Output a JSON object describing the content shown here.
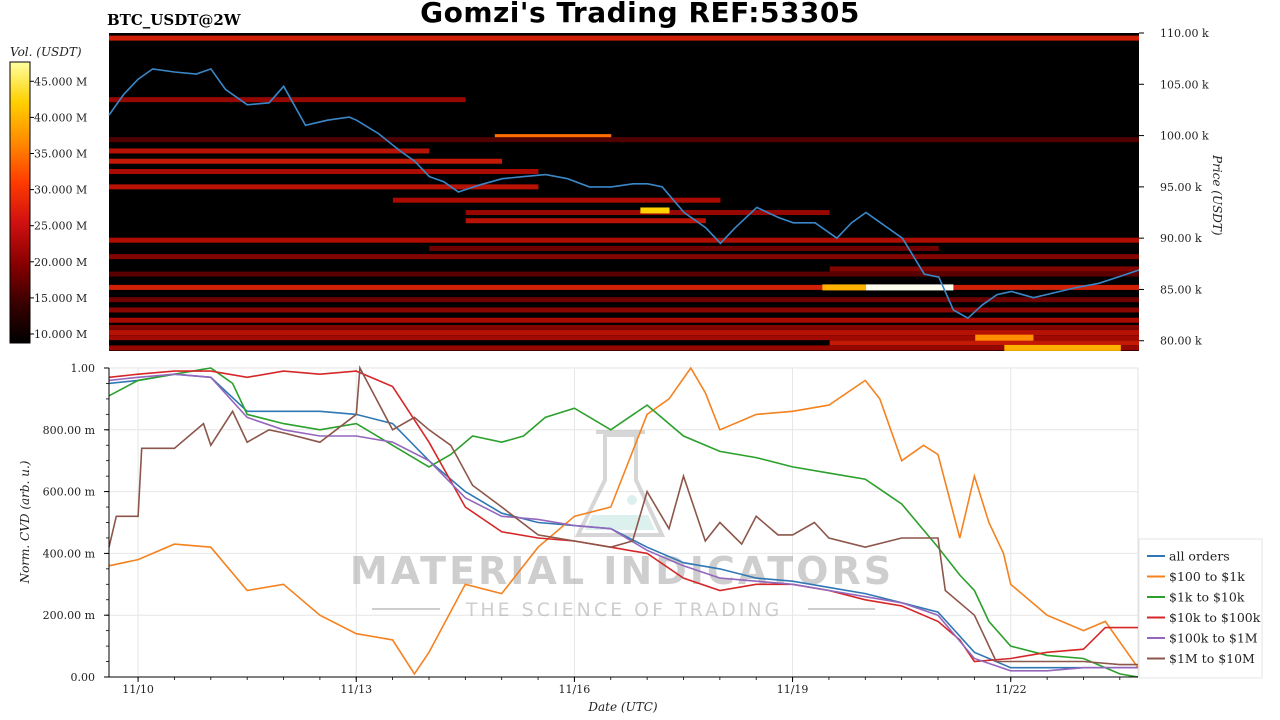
{
  "header": {
    "title": "Gomzi's Trading REF:53305",
    "symbol": "BTC_USDT@2W"
  },
  "watermark": {
    "brand": "MATERIAL INDICATORS",
    "tagline": "THE SCIENCE OF TRADING"
  },
  "colorbar": {
    "label": "Vol. (USDT)",
    "ticks": [
      "10.000 M",
      "15.000 M",
      "20.000 M",
      "25.000 M",
      "30.000 M",
      "35.000 M",
      "40.000 M",
      "45.000 M"
    ],
    "colors": [
      "#000000",
      "#3a0000",
      "#8a0000",
      "#d01010",
      "#ff3b00",
      "#ff8a00",
      "#ffd000",
      "#ffffa0"
    ]
  },
  "chart_data": [
    {
      "type": "heatmap",
      "ylabel": "Price (USDT)",
      "ylim": [
        79000,
        110000
      ],
      "y_ticks": [
        "80.00 k",
        "85.00 k",
        "90.00 k",
        "95.00 k",
        "100.00 k",
        "105.00 k",
        "110.00 k"
      ],
      "y_tick_values": [
        80000,
        85000,
        90000,
        95000,
        100000,
        105000,
        110000
      ],
      "xlim": [
        9.6,
        23.75
      ],
      "price_line": {
        "color": "#3a87c8",
        "x": [
          9.6,
          9.8,
          10.0,
          10.2,
          10.5,
          10.8,
          11.0,
          11.2,
          11.5,
          11.8,
          12.0,
          12.3,
          12.6,
          12.9,
          13.0,
          13.3,
          13.6,
          13.8,
          14.0,
          14.2,
          14.4,
          14.7,
          15.0,
          15.3,
          15.6,
          15.9,
          16.2,
          16.5,
          16.8,
          17.0,
          17.2,
          17.5,
          17.8,
          18.0,
          18.2,
          18.5,
          18.8,
          19.0,
          19.3,
          19.6,
          19.8,
          20.0,
          20.2,
          20.5,
          20.8,
          21.0,
          21.2,
          21.4,
          21.6,
          21.8,
          22.0,
          22.3,
          22.6,
          22.9,
          23.2,
          23.5,
          23.75
        ],
        "y": [
          102000,
          104000,
          105500,
          106500,
          106200,
          106000,
          106500,
          104500,
          103000,
          103200,
          104800,
          101000,
          101500,
          101800,
          101500,
          100200,
          98500,
          97500,
          96000,
          95500,
          94500,
          95200,
          95800,
          96000,
          96200,
          95800,
          95000,
          95000,
          95300,
          95300,
          95000,
          92500,
          91000,
          89500,
          91000,
          93000,
          92000,
          91500,
          91500,
          90000,
          91500,
          92500,
          91500,
          90000,
          86500,
          86200,
          83000,
          82200,
          83500,
          84500,
          84800,
          84200,
          84700,
          85200,
          85600,
          86300,
          86900
        ]
      },
      "levels": [
        {
          "price": 109500,
          "x0": 9.6,
          "x1": 23.75,
          "intensity": 0.55
        },
        {
          "price": 103500,
          "x0": 9.6,
          "x1": 14.5,
          "intensity": 0.35
        },
        {
          "price": 99900,
          "x0": 14.9,
          "x1": 16.5,
          "intensity": 0.75
        },
        {
          "price": 99600,
          "x0": 9.6,
          "x1": 23.75,
          "intensity": 0.18
        },
        {
          "price": 98500,
          "x0": 9.6,
          "x1": 14.0,
          "intensity": 0.45
        },
        {
          "price": 97500,
          "x0": 9.6,
          "x1": 15.0,
          "intensity": 0.5
        },
        {
          "price": 96500,
          "x0": 9.6,
          "x1": 15.5,
          "intensity": 0.4
        },
        {
          "price": 95000,
          "x0": 9.6,
          "x1": 15.5,
          "intensity": 0.45
        },
        {
          "price": 93700,
          "x0": 13.5,
          "x1": 18.0,
          "intensity": 0.4
        },
        {
          "price": 92500,
          "x0": 14.5,
          "x1": 19.5,
          "intensity": 0.35
        },
        {
          "price": 91700,
          "x0": 14.5,
          "x1": 17.8,
          "intensity": 0.45
        },
        {
          "price": 89800,
          "x0": 9.6,
          "x1": 23.75,
          "intensity": 0.42
        },
        {
          "price": 89000,
          "x0": 14.0,
          "x1": 21.0,
          "intensity": 0.25
        },
        {
          "price": 88200,
          "x0": 9.6,
          "x1": 23.75,
          "intensity": 0.3
        },
        {
          "price": 87000,
          "x0": 19.5,
          "x1": 23.75,
          "intensity": 0.3
        },
        {
          "price": 86500,
          "x0": 9.6,
          "x1": 23.75,
          "intensity": 0.2
        },
        {
          "price": 85200,
          "x0": 9.6,
          "x1": 23.75,
          "intensity": 0.55
        },
        {
          "price": 84000,
          "x0": 9.6,
          "x1": 23.75,
          "intensity": 0.25
        },
        {
          "price": 83000,
          "x0": 9.6,
          "x1": 23.75,
          "intensity": 0.32
        },
        {
          "price": 82000,
          "x0": 9.6,
          "x1": 23.75,
          "intensity": 0.4
        },
        {
          "price": 81300,
          "x0": 9.6,
          "x1": 23.75,
          "intensity": 0.3
        },
        {
          "price": 80800,
          "x0": 9.6,
          "x1": 23.75,
          "intensity": 0.45
        },
        {
          "price": 80300,
          "x0": 9.6,
          "x1": 23.75,
          "intensity": 0.38
        },
        {
          "price": 79800,
          "x0": 19.5,
          "x1": 23.75,
          "intensity": 0.5
        },
        {
          "price": 79300,
          "x0": 9.6,
          "x1": 23.75,
          "intensity": 0.35
        }
      ],
      "hotspots": [
        {
          "price": 85200,
          "x0": 20.0,
          "x1": 21.2,
          "intensity": 1.0
        },
        {
          "price": 85200,
          "x0": 19.4,
          "x1": 20.0,
          "intensity": 0.85
        },
        {
          "price": 92700,
          "x0": 16.9,
          "x1": 17.3,
          "intensity": 0.9
        },
        {
          "price": 79300,
          "x0": 21.9,
          "x1": 23.5,
          "intensity": 0.85
        },
        {
          "price": 80300,
          "x0": 21.5,
          "x1": 22.3,
          "intensity": 0.8
        }
      ]
    },
    {
      "type": "line",
      "xlabel": "Date (UTC)",
      "ylabel": "Norm. CVD (arb. u.)",
      "ylim": [
        0,
        1
      ],
      "xlim": [
        9.6,
        23.75
      ],
      "x_ticks": [
        "11/10",
        "11/13",
        "11/16",
        "11/19",
        "11/22"
      ],
      "x_tick_values": [
        10,
        13,
        16,
        19,
        22
      ],
      "y_ticks": [
        "0.00",
        "200.00 m",
        "400.00 m",
        "600.00 m",
        "800.00 m",
        "1.00"
      ],
      "y_tick_values": [
        0,
        0.2,
        0.4,
        0.6,
        0.8,
        1.0
      ],
      "series": [
        {
          "name": "all orders",
          "color": "#2f78b4",
          "x": [
            9.6,
            10.0,
            10.5,
            11.0,
            11.5,
            12.0,
            12.5,
            13.0,
            13.5,
            14.0,
            14.5,
            15.0,
            15.5,
            16.0,
            16.5,
            17.0,
            17.5,
            18.0,
            18.5,
            19.0,
            19.5,
            20.0,
            20.5,
            21.0,
            21.5,
            22.0,
            22.5,
            23.0,
            23.75
          ],
          "y": [
            0.95,
            0.96,
            0.98,
            0.97,
            0.86,
            0.86,
            0.86,
            0.85,
            0.82,
            0.7,
            0.6,
            0.53,
            0.5,
            0.49,
            0.48,
            0.42,
            0.37,
            0.35,
            0.32,
            0.31,
            0.29,
            0.27,
            0.24,
            0.21,
            0.08,
            0.03,
            0.03,
            0.03,
            0.03
          ]
        },
        {
          "name": "$100 to $1k",
          "color": "#f5821f",
          "x": [
            9.6,
            10.0,
            10.5,
            11.0,
            11.5,
            12.0,
            12.5,
            13.0,
            13.5,
            13.8,
            14.0,
            14.5,
            15.0,
            15.5,
            16.0,
            16.5,
            17.0,
            17.3,
            17.6,
            17.8,
            18.0,
            18.5,
            19.0,
            19.5,
            20.0,
            20.2,
            20.5,
            20.8,
            21.0,
            21.3,
            21.5,
            21.7,
            21.9,
            22.0,
            22.5,
            23.0,
            23.3,
            23.75
          ],
          "y": [
            0.36,
            0.38,
            0.43,
            0.42,
            0.28,
            0.3,
            0.2,
            0.14,
            0.12,
            0.01,
            0.08,
            0.3,
            0.27,
            0.42,
            0.52,
            0.55,
            0.85,
            0.9,
            1.0,
            0.92,
            0.8,
            0.85,
            0.86,
            0.88,
            0.96,
            0.9,
            0.7,
            0.75,
            0.72,
            0.45,
            0.65,
            0.5,
            0.4,
            0.3,
            0.2,
            0.15,
            0.18,
            0.03
          ]
        },
        {
          "name": "$1k to $10k",
          "color": "#2ca02c",
          "x": [
            9.6,
            10.0,
            10.5,
            11.0,
            11.3,
            11.5,
            12.0,
            12.5,
            13.0,
            13.5,
            14.0,
            14.3,
            14.6,
            15.0,
            15.3,
            15.6,
            16.0,
            16.5,
            17.0,
            17.5,
            18.0,
            18.5,
            19.0,
            19.5,
            20.0,
            20.5,
            21.0,
            21.3,
            21.5,
            21.7,
            22.0,
            22.5,
            23.0,
            23.5,
            23.75
          ],
          "y": [
            0.91,
            0.96,
            0.98,
            1.0,
            0.95,
            0.85,
            0.82,
            0.8,
            0.82,
            0.75,
            0.68,
            0.72,
            0.78,
            0.76,
            0.78,
            0.84,
            0.87,
            0.8,
            0.88,
            0.78,
            0.73,
            0.71,
            0.68,
            0.66,
            0.64,
            0.56,
            0.42,
            0.33,
            0.28,
            0.18,
            0.1,
            0.07,
            0.06,
            0.01,
            0.0
          ]
        },
        {
          "name": "$10k to $100k",
          "color": "#d62728",
          "x": [
            9.6,
            10.0,
            10.5,
            11.0,
            11.5,
            12.0,
            12.5,
            13.0,
            13.5,
            14.0,
            14.5,
            15.0,
            15.5,
            16.0,
            16.5,
            17.0,
            17.5,
            18.0,
            18.5,
            19.0,
            19.5,
            20.0,
            20.5,
            21.0,
            21.3,
            21.5,
            22.0,
            22.5,
            23.0,
            23.3,
            23.75
          ],
          "y": [
            0.97,
            0.98,
            0.99,
            0.99,
            0.97,
            0.99,
            0.98,
            0.99,
            0.94,
            0.76,
            0.55,
            0.47,
            0.45,
            0.44,
            0.42,
            0.4,
            0.32,
            0.28,
            0.3,
            0.3,
            0.28,
            0.25,
            0.23,
            0.18,
            0.12,
            0.05,
            0.06,
            0.08,
            0.09,
            0.16,
            0.16
          ]
        },
        {
          "name": "$100k to $1M",
          "color": "#9467bd",
          "x": [
            9.6,
            10.0,
            10.5,
            11.0,
            11.5,
            12.0,
            12.5,
            13.0,
            13.5,
            14.0,
            14.5,
            15.0,
            15.5,
            16.0,
            16.5,
            17.0,
            17.5,
            18.0,
            18.5,
            19.0,
            19.5,
            20.0,
            20.5,
            21.0,
            21.5,
            22.0,
            22.5,
            23.0,
            23.75
          ],
          "y": [
            0.96,
            0.97,
            0.98,
            0.97,
            0.84,
            0.8,
            0.78,
            0.78,
            0.76,
            0.7,
            0.58,
            0.52,
            0.51,
            0.49,
            0.48,
            0.41,
            0.36,
            0.32,
            0.31,
            0.3,
            0.28,
            0.26,
            0.24,
            0.2,
            0.06,
            0.02,
            0.02,
            0.03,
            0.03
          ]
        },
        {
          "name": "$1M to $10M",
          "color": "#8c564b",
          "x": [
            9.6,
            9.7,
            10.0,
            10.05,
            10.5,
            10.9,
            11.0,
            11.3,
            11.5,
            11.8,
            12.0,
            12.5,
            13.0,
            13.05,
            13.5,
            13.8,
            14.0,
            14.3,
            14.6,
            15.0,
            15.5,
            16.0,
            16.5,
            16.8,
            17.0,
            17.3,
            17.5,
            17.8,
            18.0,
            18.3,
            18.5,
            18.8,
            19.0,
            19.3,
            19.5,
            20.0,
            20.5,
            21.0,
            21.1,
            21.5,
            21.8,
            22.0,
            22.5,
            23.0,
            23.5,
            23.75
          ],
          "y": [
            0.42,
            0.52,
            0.52,
            0.74,
            0.74,
            0.82,
            0.75,
            0.86,
            0.76,
            0.8,
            0.79,
            0.76,
            0.85,
            1.0,
            0.8,
            0.84,
            0.8,
            0.75,
            0.62,
            0.55,
            0.46,
            0.44,
            0.42,
            0.44,
            0.6,
            0.48,
            0.65,
            0.44,
            0.5,
            0.43,
            0.52,
            0.46,
            0.46,
            0.5,
            0.45,
            0.42,
            0.45,
            0.45,
            0.28,
            0.2,
            0.05,
            0.05,
            0.05,
            0.05,
            0.04,
            0.04
          ]
        }
      ],
      "legend_position": "lower-right"
    }
  ]
}
